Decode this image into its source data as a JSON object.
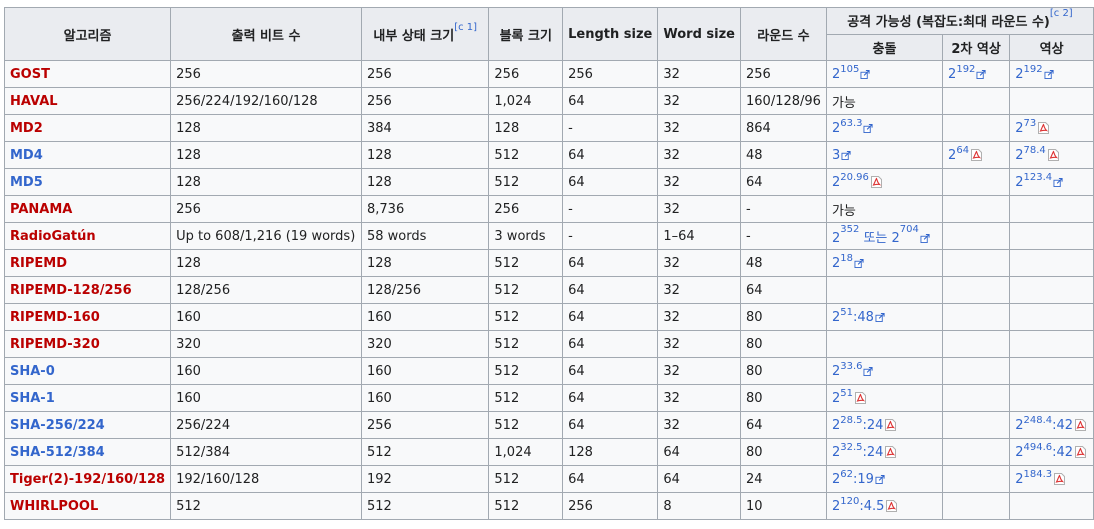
{
  "headers": {
    "algorithm": "알고리즘",
    "output_bits": "출력 비트 수",
    "internal_state": "내부 상태 크기",
    "internal_state_note": "[c 1]",
    "block_size": "블록 크기",
    "length_size": "Length size",
    "word_size": "Word size",
    "rounds": "라운드 수",
    "attack": "공격 가능성 (복잡도:최대 라운드 수)",
    "attack_note": "[c 2]",
    "collision": "충돌",
    "second_preimage": "2차 역상",
    "preimage": "역상"
  },
  "rows": [
    {
      "name": "GOST",
      "link": "red",
      "output": "256",
      "state": "256",
      "block": "256",
      "length": "256",
      "word": "32",
      "rounds": "256",
      "collision": {
        "base": "2",
        "exp": "105",
        "suffix": "",
        "icon": "ext"
      },
      "second": {
        "base": "2",
        "exp": "192",
        "suffix": "",
        "icon": "ext"
      },
      "pre": {
        "base": "2",
        "exp": "192",
        "suffix": "",
        "icon": "ext"
      }
    },
    {
      "name": "HAVAL",
      "link": "red",
      "output": "256/224/192/160/128",
      "state": "256",
      "block": "1,024",
      "length": "64",
      "word": "32",
      "rounds": "160/128/96",
      "collision": {
        "text": "가능"
      },
      "second": null,
      "pre": null
    },
    {
      "name": "MD2",
      "link": "red",
      "output": "128",
      "state": "384",
      "block": "128",
      "length": "-",
      "word": "32",
      "rounds": "864",
      "collision": {
        "base": "2",
        "exp": "63.3",
        "suffix": "",
        "icon": "ext"
      },
      "second": null,
      "pre": {
        "base": "2",
        "exp": "73",
        "suffix": "",
        "icon": "pdf"
      }
    },
    {
      "name": "MD4",
      "link": "blue",
      "output": "128",
      "state": "128",
      "block": "512",
      "length": "64",
      "word": "32",
      "rounds": "48",
      "collision": {
        "base": "3",
        "exp": "",
        "suffix": "",
        "icon": "ext"
      },
      "second": {
        "base": "2",
        "exp": "64",
        "suffix": "",
        "icon": "pdf"
      },
      "pre": {
        "base": "2",
        "exp": "78.4",
        "suffix": "",
        "icon": "pdf"
      }
    },
    {
      "name": "MD5",
      "link": "blue",
      "output": "128",
      "state": "128",
      "block": "512",
      "length": "64",
      "word": "32",
      "rounds": "64",
      "collision": {
        "base": "2",
        "exp": "20.96",
        "suffix": "",
        "icon": "pdf"
      },
      "second": null,
      "pre": {
        "base": "2",
        "exp": "123.4",
        "suffix": "",
        "icon": "ext"
      }
    },
    {
      "name": "PANAMA",
      "link": "red",
      "output": "256",
      "state": "8,736",
      "block": "256",
      "length": "-",
      "word": "32",
      "rounds": "-",
      "collision": {
        "text": "가능"
      },
      "second": null,
      "pre": null
    },
    {
      "name": "RadioGatún",
      "link": "red",
      "output": "Up to 608/1,216 (19 words)",
      "state": "58 words",
      "block": "3 words",
      "length": "-",
      "word": "1–64",
      "rounds": "-",
      "collision": {
        "base": "2",
        "exp": "352",
        "suffix": " 또는 ",
        "base2": "2",
        "exp2": "704",
        "icon": "ext"
      },
      "second": null,
      "pre": null
    },
    {
      "name": "RIPEMD",
      "link": "red",
      "output": "128",
      "state": "128",
      "block": "512",
      "length": "64",
      "word": "32",
      "rounds": "48",
      "collision": {
        "base": "2",
        "exp": "18",
        "suffix": "",
        "icon": "ext"
      },
      "second": null,
      "pre": null
    },
    {
      "name": "RIPEMD-128/256",
      "link": "red",
      "output": "128/256",
      "state": "128/256",
      "block": "512",
      "length": "64",
      "word": "32",
      "rounds": "64",
      "collision": null,
      "second": null,
      "pre": null
    },
    {
      "name": "RIPEMD-160",
      "link": "red",
      "output": "160",
      "state": "160",
      "block": "512",
      "length": "64",
      "word": "32",
      "rounds": "80",
      "collision": {
        "base": "2",
        "exp": "51",
        "suffix": ":48",
        "icon": "ext"
      },
      "second": null,
      "pre": null
    },
    {
      "name": "RIPEMD-320",
      "link": "red",
      "output": "320",
      "state": "320",
      "block": "512",
      "length": "64",
      "word": "32",
      "rounds": "80",
      "collision": null,
      "second": null,
      "pre": null
    },
    {
      "name": "SHA-0",
      "link": "blue",
      "output": "160",
      "state": "160",
      "block": "512",
      "length": "64",
      "word": "32",
      "rounds": "80",
      "collision": {
        "base": "2",
        "exp": "33.6",
        "suffix": "",
        "icon": "ext"
      },
      "second": null,
      "pre": null
    },
    {
      "name": "SHA-1",
      "link": "blue",
      "output": "160",
      "state": "160",
      "block": "512",
      "length": "64",
      "word": "32",
      "rounds": "80",
      "collision": {
        "base": "2",
        "exp": "51",
        "suffix": "",
        "icon": "pdf"
      },
      "second": null,
      "pre": null
    },
    {
      "name": "SHA-256/224",
      "link": "blue",
      "output": "256/224",
      "state": "256",
      "block": "512",
      "length": "64",
      "word": "32",
      "rounds": "64",
      "collision": {
        "base": "2",
        "exp": "28.5",
        "suffix": ":24",
        "icon": "pdf"
      },
      "second": null,
      "pre": {
        "base": "2",
        "exp": "248.4",
        "suffix": ":42",
        "icon": "pdf"
      }
    },
    {
      "name": "SHA-512/384",
      "link": "blue",
      "output": "512/384",
      "state": "512",
      "block": "1,024",
      "length": "128",
      "word": "64",
      "rounds": "80",
      "collision": {
        "base": "2",
        "exp": "32.5",
        "suffix": ":24",
        "icon": "pdf"
      },
      "second": null,
      "pre": {
        "base": "2",
        "exp": "494.6",
        "suffix": ":42",
        "icon": "pdf"
      }
    },
    {
      "name": "Tiger(2)-192/160/128",
      "link": "red",
      "output": "192/160/128",
      "state": "192",
      "block": "512",
      "length": "64",
      "word": "64",
      "rounds": "24",
      "collision": {
        "base": "2",
        "exp": "62",
        "suffix": ":19",
        "icon": "ext"
      },
      "second": null,
      "pre": {
        "base": "2",
        "exp": "184.3",
        "suffix": "",
        "icon": "pdf"
      }
    },
    {
      "name": "WHIRLPOOL",
      "link": "red",
      "output": "512",
      "state": "512",
      "block": "512",
      "length": "256",
      "word": "8",
      "rounds": "10",
      "collision": {
        "base": "2",
        "exp": "120",
        "suffix": ":4.5",
        "icon": "pdf"
      },
      "second": null,
      "pre": null
    }
  ],
  "colors": {
    "red_link": "#ba0000",
    "blue_link": "#3366cc",
    "header_bg": "#eaecf0",
    "cell_bg": "#f8f9fa",
    "border": "#a2a9b1"
  }
}
